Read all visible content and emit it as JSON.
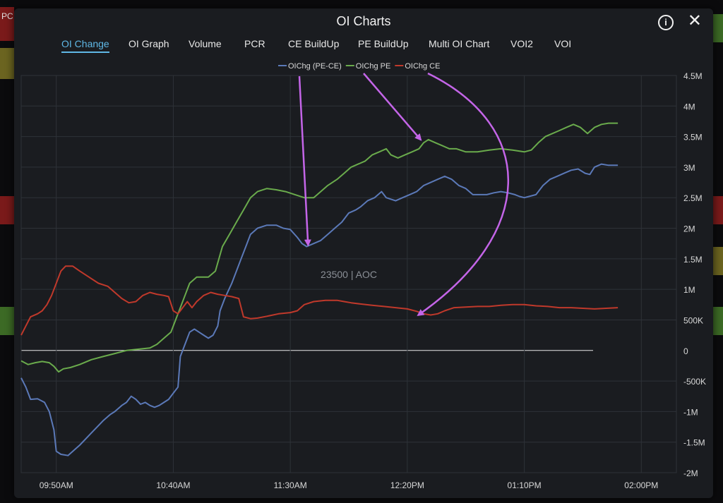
{
  "window": {
    "title": "OI Charts",
    "info_icon": "info-icon",
    "close_icon": "close-icon",
    "close_glyph": "✕",
    "info_glyph": "i"
  },
  "tabs": [
    {
      "label": "OI Change",
      "active": true
    },
    {
      "label": "OI Graph",
      "active": false
    },
    {
      "label": "Volume",
      "active": false
    },
    {
      "label": "PCR",
      "active": false
    },
    {
      "label": "CE BuildUp",
      "active": false
    },
    {
      "label": "PE BuildUp",
      "active": false
    },
    {
      "label": "Multi OI Chart",
      "active": false
    },
    {
      "label": "VOI2",
      "active": false
    },
    {
      "label": "VOI",
      "active": false
    }
  ],
  "background": {
    "left_label": "PC"
  },
  "chart_data": {
    "type": "line",
    "watermark": "23500 | AOC",
    "x_ticks": [
      "09:50AM",
      "10:40AM",
      "11:30AM",
      "12:20PM",
      "01:10PM",
      "02:00PM"
    ],
    "y_ticks": [
      "4.5M",
      "4M",
      "3.5M",
      "3M",
      "2.5M",
      "2M",
      "1.5M",
      "1M",
      "500K",
      "0",
      "-500K",
      "-1M",
      "-1.5M",
      "-2M"
    ],
    "ylim": [
      -2000000,
      4500000
    ],
    "xlim": [
      "09:35",
      "02:15"
    ],
    "grid": true,
    "legend_position": "top-center",
    "series": [
      {
        "name": "OIChg (PE-CE)",
        "color": "#5b79b8",
        "points": [
          [
            "09:35",
            -450000
          ],
          [
            "09:37",
            -600000
          ],
          [
            "09:39",
            -800000
          ],
          [
            "09:42",
            -790000
          ],
          [
            "09:45",
            -850000
          ],
          [
            "09:47",
            -1000000
          ],
          [
            "09:49",
            -1300000
          ],
          [
            "09:50",
            -1650000
          ],
          [
            "09:52",
            -1700000
          ],
          [
            "09:55",
            -1720000
          ],
          [
            "10:00",
            -1550000
          ],
          [
            "10:05",
            -1350000
          ],
          [
            "10:10",
            -1150000
          ],
          [
            "10:13",
            -1050000
          ],
          [
            "10:15",
            -1000000
          ],
          [
            "10:18",
            -900000
          ],
          [
            "10:20",
            -850000
          ],
          [
            "10:22",
            -750000
          ],
          [
            "10:24",
            -800000
          ],
          [
            "10:26",
            -880000
          ],
          [
            "10:28",
            -850000
          ],
          [
            "10:30",
            -900000
          ],
          [
            "10:32",
            -930000
          ],
          [
            "10:34",
            -900000
          ],
          [
            "10:36",
            -850000
          ],
          [
            "10:38",
            -800000
          ],
          [
            "10:40",
            -700000
          ],
          [
            "10:42",
            -600000
          ],
          [
            "10:43",
            -100000
          ],
          [
            "10:45",
            100000
          ],
          [
            "10:47",
            300000
          ],
          [
            "10:49",
            350000
          ],
          [
            "10:51",
            300000
          ],
          [
            "10:53",
            250000
          ],
          [
            "10:55",
            200000
          ],
          [
            "10:57",
            250000
          ],
          [
            "10:59",
            400000
          ],
          [
            "11:00",
            650000
          ],
          [
            "11:02",
            850000
          ],
          [
            "11:05",
            1100000
          ],
          [
            "11:07",
            1300000
          ],
          [
            "11:09",
            1500000
          ],
          [
            "11:11",
            1700000
          ],
          [
            "11:13",
            1900000
          ],
          [
            "11:16",
            2000000
          ],
          [
            "11:20",
            2050000
          ],
          [
            "11:24",
            2050000
          ],
          [
            "11:27",
            2000000
          ],
          [
            "11:30",
            1980000
          ],
          [
            "11:33",
            1850000
          ],
          [
            "11:35",
            1750000
          ],
          [
            "11:37",
            1700000
          ],
          [
            "11:40",
            1750000
          ],
          [
            "11:43",
            1800000
          ],
          [
            "11:46",
            1900000
          ],
          [
            "11:49",
            2000000
          ],
          [
            "11:52",
            2100000
          ],
          [
            "11:55",
            2250000
          ],
          [
            "11:58",
            2300000
          ],
          [
            "12:00",
            2350000
          ],
          [
            "12:03",
            2450000
          ],
          [
            "12:06",
            2500000
          ],
          [
            "12:09",
            2600000
          ],
          [
            "12:11",
            2500000
          ],
          [
            "12:15",
            2450000
          ],
          [
            "12:18",
            2500000
          ],
          [
            "12:21",
            2550000
          ],
          [
            "12:24",
            2600000
          ],
          [
            "12:27",
            2700000
          ],
          [
            "12:30",
            2750000
          ],
          [
            "12:33",
            2800000
          ],
          [
            "12:36",
            2850000
          ],
          [
            "12:39",
            2800000
          ],
          [
            "12:42",
            2700000
          ],
          [
            "12:45",
            2650000
          ],
          [
            "12:48",
            2550000
          ],
          [
            "12:51",
            2550000
          ],
          [
            "12:54",
            2550000
          ],
          [
            "12:57",
            2580000
          ],
          [
            "13:00",
            2600000
          ],
          [
            "13:03",
            2580000
          ],
          [
            "13:06",
            2550000
          ],
          [
            "13:08",
            2520000
          ],
          [
            "13:10",
            2500000
          ],
          [
            "13:12",
            2520000
          ],
          [
            "13:15",
            2550000
          ],
          [
            "13:18",
            2700000
          ],
          [
            "13:21",
            2800000
          ],
          [
            "13:24",
            2850000
          ],
          [
            "13:27",
            2900000
          ],
          [
            "13:30",
            2950000
          ],
          [
            "13:33",
            2970000
          ],
          [
            "13:36",
            2900000
          ],
          [
            "13:38",
            2880000
          ],
          [
            "13:40",
            3000000
          ],
          [
            "13:43",
            3050000
          ],
          [
            "13:46",
            3030000
          ],
          [
            "13:50",
            3030000
          ]
        ]
      },
      {
        "name": "OIChg PE",
        "color": "#6aab4c",
        "points": [
          [
            "09:35",
            -170000
          ],
          [
            "09:38",
            -230000
          ],
          [
            "09:41",
            -200000
          ],
          [
            "09:44",
            -180000
          ],
          [
            "09:47",
            -200000
          ],
          [
            "09:49",
            -260000
          ],
          [
            "09:51",
            -350000
          ],
          [
            "09:53",
            -300000
          ],
          [
            "09:56",
            -280000
          ],
          [
            "10:00",
            -230000
          ],
          [
            "10:05",
            -150000
          ],
          [
            "10:10",
            -100000
          ],
          [
            "10:15",
            -50000
          ],
          [
            "10:20",
            0
          ],
          [
            "10:25",
            20000
          ],
          [
            "10:30",
            40000
          ],
          [
            "10:33",
            100000
          ],
          [
            "10:36",
            200000
          ],
          [
            "10:39",
            300000
          ],
          [
            "10:41",
            500000
          ],
          [
            "10:43",
            700000
          ],
          [
            "10:45",
            900000
          ],
          [
            "10:47",
            1100000
          ],
          [
            "10:50",
            1200000
          ],
          [
            "10:55",
            1200000
          ],
          [
            "10:58",
            1300000
          ],
          [
            "11:01",
            1700000
          ],
          [
            "11:04",
            1900000
          ],
          [
            "11:07",
            2100000
          ],
          [
            "11:10",
            2300000
          ],
          [
            "11:13",
            2500000
          ],
          [
            "11:16",
            2600000
          ],
          [
            "11:20",
            2650000
          ],
          [
            "11:24",
            2630000
          ],
          [
            "11:28",
            2600000
          ],
          [
            "11:32",
            2550000
          ],
          [
            "11:36",
            2500000
          ],
          [
            "11:40",
            2500000
          ],
          [
            "11:43",
            2600000
          ],
          [
            "11:46",
            2700000
          ],
          [
            "11:50",
            2800000
          ],
          [
            "11:53",
            2900000
          ],
          [
            "11:56",
            3000000
          ],
          [
            "11:59",
            3050000
          ],
          [
            "12:02",
            3100000
          ],
          [
            "12:05",
            3200000
          ],
          [
            "12:08",
            3250000
          ],
          [
            "12:11",
            3300000
          ],
          [
            "12:13",
            3200000
          ],
          [
            "12:16",
            3150000
          ],
          [
            "12:19",
            3200000
          ],
          [
            "12:22",
            3250000
          ],
          [
            "12:25",
            3300000
          ],
          [
            "12:27",
            3400000
          ],
          [
            "12:29",
            3450000
          ],
          [
            "12:32",
            3400000
          ],
          [
            "12:35",
            3350000
          ],
          [
            "12:38",
            3300000
          ],
          [
            "12:41",
            3300000
          ],
          [
            "12:45",
            3250000
          ],
          [
            "12:50",
            3250000
          ],
          [
            "12:55",
            3280000
          ],
          [
            "13:00",
            3300000
          ],
          [
            "13:05",
            3280000
          ],
          [
            "13:10",
            3250000
          ],
          [
            "13:13",
            3280000
          ],
          [
            "13:16",
            3400000
          ],
          [
            "13:19",
            3500000
          ],
          [
            "13:22",
            3550000
          ],
          [
            "13:25",
            3600000
          ],
          [
            "13:28",
            3650000
          ],
          [
            "13:31",
            3700000
          ],
          [
            "13:34",
            3650000
          ],
          [
            "13:37",
            3550000
          ],
          [
            "13:40",
            3650000
          ],
          [
            "13:43",
            3700000
          ],
          [
            "13:46",
            3720000
          ],
          [
            "13:50",
            3720000
          ]
        ]
      },
      {
        "name": "OIChg CE",
        "color": "#c0392b",
        "points": [
          [
            "09:35",
            250000
          ],
          [
            "09:37",
            400000
          ],
          [
            "09:39",
            550000
          ],
          [
            "09:42",
            600000
          ],
          [
            "09:44",
            650000
          ],
          [
            "09:46",
            750000
          ],
          [
            "09:48",
            900000
          ],
          [
            "09:50",
            1100000
          ],
          [
            "09:52",
            1300000
          ],
          [
            "09:54",
            1380000
          ],
          [
            "09:57",
            1380000
          ],
          [
            "10:00",
            1300000
          ],
          [
            "10:04",
            1200000
          ],
          [
            "10:08",
            1100000
          ],
          [
            "10:12",
            1050000
          ],
          [
            "10:15",
            950000
          ],
          [
            "10:18",
            850000
          ],
          [
            "10:21",
            780000
          ],
          [
            "10:24",
            800000
          ],
          [
            "10:27",
            900000
          ],
          [
            "10:30",
            950000
          ],
          [
            "10:33",
            920000
          ],
          [
            "10:36",
            900000
          ],
          [
            "10:38",
            880000
          ],
          [
            "10:40",
            650000
          ],
          [
            "10:42",
            600000
          ],
          [
            "10:44",
            700000
          ],
          [
            "10:46",
            800000
          ],
          [
            "10:48",
            700000
          ],
          [
            "10:50",
            800000
          ],
          [
            "10:53",
            900000
          ],
          [
            "10:56",
            950000
          ],
          [
            "10:59",
            920000
          ],
          [
            "11:02",
            900000
          ],
          [
            "11:05",
            880000
          ],
          [
            "11:08",
            850000
          ],
          [
            "11:10",
            550000
          ],
          [
            "11:13",
            520000
          ],
          [
            "11:16",
            530000
          ],
          [
            "11:20",
            560000
          ],
          [
            "11:25",
            600000
          ],
          [
            "11:30",
            620000
          ],
          [
            "11:33",
            650000
          ],
          [
            "11:36",
            750000
          ],
          [
            "11:40",
            800000
          ],
          [
            "11:45",
            820000
          ],
          [
            "11:50",
            820000
          ],
          [
            "11:53",
            800000
          ],
          [
            "11:56",
            780000
          ],
          [
            "12:00",
            760000
          ],
          [
            "12:05",
            740000
          ],
          [
            "12:10",
            720000
          ],
          [
            "12:15",
            700000
          ],
          [
            "12:20",
            680000
          ],
          [
            "12:24",
            640000
          ],
          [
            "12:27",
            600000
          ],
          [
            "12:30",
            580000
          ],
          [
            "12:33",
            600000
          ],
          [
            "12:36",
            650000
          ],
          [
            "12:40",
            700000
          ],
          [
            "12:45",
            710000
          ],
          [
            "12:50",
            720000
          ],
          [
            "12:55",
            720000
          ],
          [
            "13:00",
            740000
          ],
          [
            "13:05",
            750000
          ],
          [
            "13:10",
            750000
          ],
          [
            "13:15",
            730000
          ],
          [
            "13:20",
            720000
          ],
          [
            "13:25",
            700000
          ],
          [
            "13:30",
            700000
          ],
          [
            "13:35",
            690000
          ],
          [
            "13:40",
            680000
          ],
          [
            "13:45",
            690000
          ],
          [
            "13:50",
            700000
          ]
        ]
      }
    ],
    "annotations": [
      {
        "type": "arrow",
        "color": "#c465e8",
        "target_series": "OIChg (PE-CE)",
        "target_x": "11:37",
        "target_y": 1700000
      },
      {
        "type": "arrow",
        "color": "#c465e8",
        "target_series": "OIChg PE",
        "target_x": "12:27",
        "target_y": 3400000
      },
      {
        "type": "arrow",
        "color": "#c465e8",
        "target_series": "OIChg CE",
        "target_x": "12:27",
        "target_y": 600000
      }
    ]
  }
}
